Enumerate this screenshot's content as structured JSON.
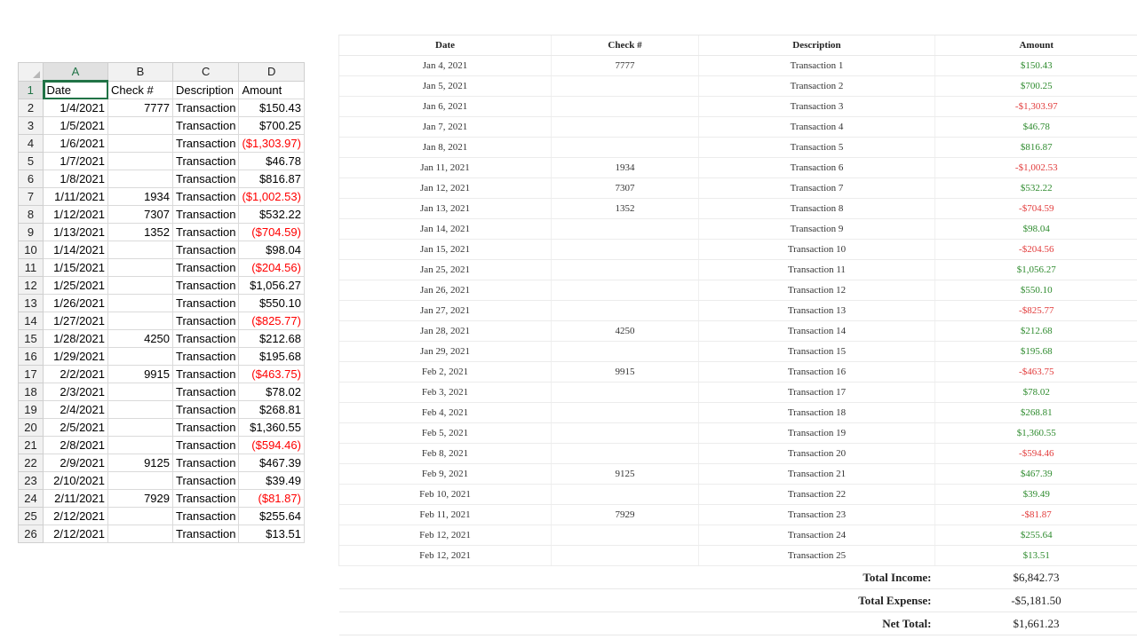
{
  "sheet": {
    "columns": [
      "A",
      "B",
      "C",
      "D"
    ],
    "header_row": {
      "num": "1",
      "date": "Date",
      "check": "Check #",
      "desc": "Description",
      "amount": "Amount"
    },
    "rows": [
      {
        "num": "2",
        "date": "1/4/2021",
        "check": "7777",
        "desc": "Transaction",
        "amount": "$150.43",
        "neg": false
      },
      {
        "num": "3",
        "date": "1/5/2021",
        "check": "",
        "desc": "Transaction",
        "amount": "$700.25",
        "neg": false
      },
      {
        "num": "4",
        "date": "1/6/2021",
        "check": "",
        "desc": "Transaction",
        "amount": "($1,303.97)",
        "neg": true
      },
      {
        "num": "5",
        "date": "1/7/2021",
        "check": "",
        "desc": "Transaction",
        "amount": "$46.78",
        "neg": false
      },
      {
        "num": "6",
        "date": "1/8/2021",
        "check": "",
        "desc": "Transaction",
        "amount": "$816.87",
        "neg": false
      },
      {
        "num": "7",
        "date": "1/11/2021",
        "check": "1934",
        "desc": "Transaction",
        "amount": "($1,002.53)",
        "neg": true
      },
      {
        "num": "8",
        "date": "1/12/2021",
        "check": "7307",
        "desc": "Transaction",
        "amount": "$532.22",
        "neg": false
      },
      {
        "num": "9",
        "date": "1/13/2021",
        "check": "1352",
        "desc": "Transaction",
        "amount": "($704.59)",
        "neg": true
      },
      {
        "num": "10",
        "date": "1/14/2021",
        "check": "",
        "desc": "Transaction",
        "amount": "$98.04",
        "neg": false
      },
      {
        "num": "11",
        "date": "1/15/2021",
        "check": "",
        "desc": "Transaction",
        "amount": "($204.56)",
        "neg": true
      },
      {
        "num": "12",
        "date": "1/25/2021",
        "check": "",
        "desc": "Transaction",
        "amount": "$1,056.27",
        "neg": false
      },
      {
        "num": "13",
        "date": "1/26/2021",
        "check": "",
        "desc": "Transaction",
        "amount": "$550.10",
        "neg": false
      },
      {
        "num": "14",
        "date": "1/27/2021",
        "check": "",
        "desc": "Transaction",
        "amount": "($825.77)",
        "neg": true
      },
      {
        "num": "15",
        "date": "1/28/2021",
        "check": "4250",
        "desc": "Transaction",
        "amount": "$212.68",
        "neg": false
      },
      {
        "num": "16",
        "date": "1/29/2021",
        "check": "",
        "desc": "Transaction",
        "amount": "$195.68",
        "neg": false
      },
      {
        "num": "17",
        "date": "2/2/2021",
        "check": "9915",
        "desc": "Transaction",
        "amount": "($463.75)",
        "neg": true
      },
      {
        "num": "18",
        "date": "2/3/2021",
        "check": "",
        "desc": "Transaction",
        "amount": "$78.02",
        "neg": false
      },
      {
        "num": "19",
        "date": "2/4/2021",
        "check": "",
        "desc": "Transaction",
        "amount": "$268.81",
        "neg": false
      },
      {
        "num": "20",
        "date": "2/5/2021",
        "check": "",
        "desc": "Transaction",
        "amount": "$1,360.55",
        "neg": false
      },
      {
        "num": "21",
        "date": "2/8/2021",
        "check": "",
        "desc": "Transaction",
        "amount": "($594.46)",
        "neg": true
      },
      {
        "num": "22",
        "date": "2/9/2021",
        "check": "9125",
        "desc": "Transaction",
        "amount": "$467.39",
        "neg": false
      },
      {
        "num": "23",
        "date": "2/10/2021",
        "check": "",
        "desc": "Transaction",
        "amount": "$39.49",
        "neg": false
      },
      {
        "num": "24",
        "date": "2/11/2021",
        "check": "7929",
        "desc": "Transaction",
        "amount": "($81.87)",
        "neg": true
      },
      {
        "num": "25",
        "date": "2/12/2021",
        "check": "",
        "desc": "Transaction",
        "amount": "$255.64",
        "neg": false
      },
      {
        "num": "26",
        "date": "2/12/2021",
        "check": "",
        "desc": "Transaction",
        "amount": "$13.51",
        "neg": false
      }
    ]
  },
  "report": {
    "headers": {
      "date": "Date",
      "check": "Check #",
      "desc": "Description",
      "amount": "Amount"
    },
    "rows": [
      {
        "date": "Jan 4, 2021",
        "check": "7777",
        "desc": "Transaction 1",
        "amount": "$150.43",
        "neg": false
      },
      {
        "date": "Jan 5, 2021",
        "check": "",
        "desc": "Transaction 2",
        "amount": "$700.25",
        "neg": false
      },
      {
        "date": "Jan 6, 2021",
        "check": "",
        "desc": "Transaction 3",
        "amount": "-$1,303.97",
        "neg": true
      },
      {
        "date": "Jan 7, 2021",
        "check": "",
        "desc": "Transaction 4",
        "amount": "$46.78",
        "neg": false
      },
      {
        "date": "Jan 8, 2021",
        "check": "",
        "desc": "Transaction 5",
        "amount": "$816.87",
        "neg": false
      },
      {
        "date": "Jan 11, 2021",
        "check": "1934",
        "desc": "Transaction 6",
        "amount": "-$1,002.53",
        "neg": true
      },
      {
        "date": "Jan 12, 2021",
        "check": "7307",
        "desc": "Transaction 7",
        "amount": "$532.22",
        "neg": false
      },
      {
        "date": "Jan 13, 2021",
        "check": "1352",
        "desc": "Transaction 8",
        "amount": "-$704.59",
        "neg": true
      },
      {
        "date": "Jan 14, 2021",
        "check": "",
        "desc": "Transaction 9",
        "amount": "$98.04",
        "neg": false
      },
      {
        "date": "Jan 15, 2021",
        "check": "",
        "desc": "Transaction 10",
        "amount": "-$204.56",
        "neg": true
      },
      {
        "date": "Jan 25, 2021",
        "check": "",
        "desc": "Transaction 11",
        "amount": "$1,056.27",
        "neg": false
      },
      {
        "date": "Jan 26, 2021",
        "check": "",
        "desc": "Transaction 12",
        "amount": "$550.10",
        "neg": false
      },
      {
        "date": "Jan 27, 2021",
        "check": "",
        "desc": "Transaction 13",
        "amount": "-$825.77",
        "neg": true
      },
      {
        "date": "Jan 28, 2021",
        "check": "4250",
        "desc": "Transaction 14",
        "amount": "$212.68",
        "neg": false
      },
      {
        "date": "Jan 29, 2021",
        "check": "",
        "desc": "Transaction 15",
        "amount": "$195.68",
        "neg": false
      },
      {
        "date": "Feb 2, 2021",
        "check": "9915",
        "desc": "Transaction 16",
        "amount": "-$463.75",
        "neg": true
      },
      {
        "date": "Feb 3, 2021",
        "check": "",
        "desc": "Transaction 17",
        "amount": "$78.02",
        "neg": false
      },
      {
        "date": "Feb 4, 2021",
        "check": "",
        "desc": "Transaction 18",
        "amount": "$268.81",
        "neg": false
      },
      {
        "date": "Feb 5, 2021",
        "check": "",
        "desc": "Transaction 19",
        "amount": "$1,360.55",
        "neg": false
      },
      {
        "date": "Feb 8, 2021",
        "check": "",
        "desc": "Transaction 20",
        "amount": "-$594.46",
        "neg": true
      },
      {
        "date": "Feb 9, 2021",
        "check": "9125",
        "desc": "Transaction 21",
        "amount": "$467.39",
        "neg": false
      },
      {
        "date": "Feb 10, 2021",
        "check": "",
        "desc": "Transaction 22",
        "amount": "$39.49",
        "neg": false
      },
      {
        "date": "Feb 11, 2021",
        "check": "7929",
        "desc": "Transaction 23",
        "amount": "-$81.87",
        "neg": true
      },
      {
        "date": "Feb 12, 2021",
        "check": "",
        "desc": "Transaction 24",
        "amount": "$255.64",
        "neg": false
      },
      {
        "date": "Feb 12, 2021",
        "check": "",
        "desc": "Transaction 25",
        "amount": "$13.51",
        "neg": false
      }
    ],
    "totals": [
      {
        "label": "Total Income:",
        "value": "$6,842.73"
      },
      {
        "label": "Total Expense:",
        "value": "-$5,181.50"
      },
      {
        "label": "Net Total:",
        "value": "$1,661.23"
      }
    ]
  },
  "colors": {
    "positive": "#2e8b2e",
    "negative": "#e23b3b",
    "sheet_negative": "#ff0000",
    "selection": "#217346"
  }
}
